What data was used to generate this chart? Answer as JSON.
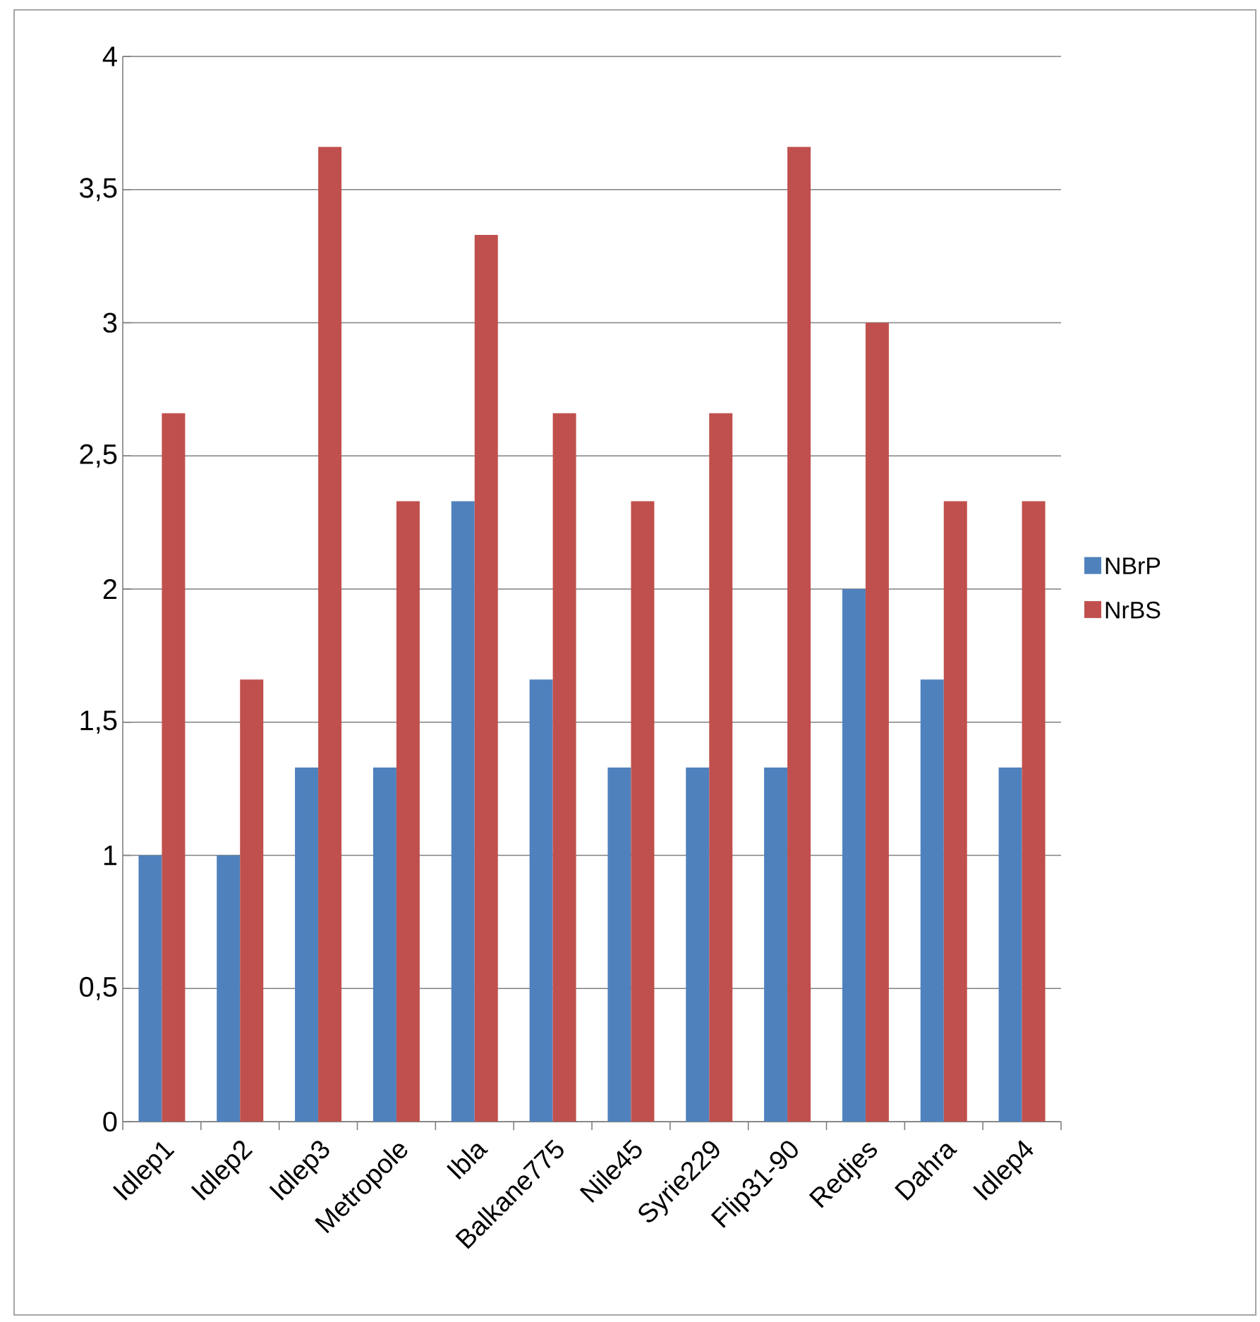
{
  "chart_data": {
    "type": "bar",
    "categories": [
      "Idlep1",
      "Idlep2",
      "Idlep3",
      "Metropole",
      "Ibla",
      "Balkane775",
      "Nile45",
      "Syrie229",
      "Flip31-90",
      "Redjes",
      "Dahra",
      "Idlep4"
    ],
    "series": [
      {
        "name": "NBrP",
        "color": "#4f81bd",
        "values": [
          1,
          1,
          1.33,
          1.33,
          2.33,
          1.66,
          1.33,
          1.33,
          1.33,
          2,
          1.66,
          1.33
        ]
      },
      {
        "name": "NrBS",
        "color": "#c0504d",
        "values": [
          2.66,
          1.66,
          3.66,
          2.33,
          3.33,
          2.66,
          2.33,
          2.66,
          3.66,
          3,
          2.33,
          2.33
        ]
      }
    ],
    "ylim": [
      0,
      4
    ],
    "yticks": [
      0,
      {
        "value": 0.5,
        "label": "0,5"
      },
      1,
      {
        "value": 1.5,
        "label": "1,5"
      },
      2,
      {
        "value": 2.5,
        "label": "2,5"
      },
      3,
      {
        "value": 3.5,
        "label": "3,5"
      },
      4
    ],
    "grid": "y",
    "legend": "right"
  }
}
